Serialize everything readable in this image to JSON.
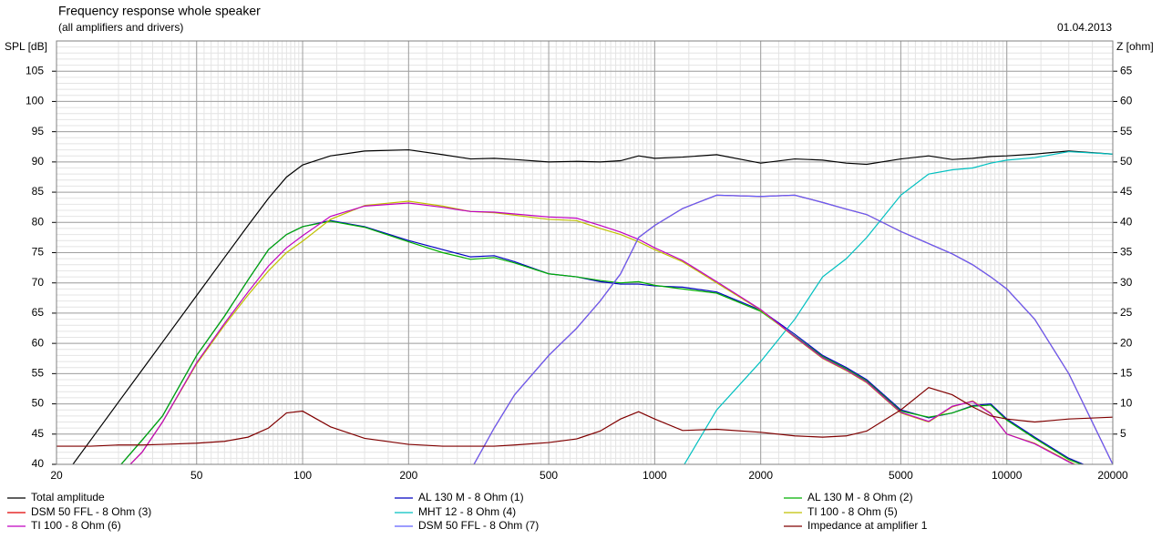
{
  "chart_data": {
    "type": "line",
    "title": "Frequency response whole speaker",
    "subtitle": "(all amplifiers and drivers)",
    "date": "01.04.2013",
    "y_label": "SPL [dB]",
    "y2_label": "Z [ohm]",
    "x_scale": "log",
    "grid": true,
    "xlim": [
      20,
      20000
    ],
    "xticks": [
      20,
      50,
      100,
      200,
      500,
      1000,
      2000,
      5000,
      10000,
      20000
    ],
    "ylim": [
      40,
      110
    ],
    "yticks": [
      40,
      45,
      50,
      55,
      60,
      65,
      70,
      75,
      80,
      85,
      90,
      95,
      100,
      105
    ],
    "y2lim": [
      0,
      70
    ],
    "y2ticks": [
      5,
      10,
      15,
      20,
      25,
      30,
      35,
      40,
      45,
      50,
      55,
      60,
      65
    ],
    "x": [
      20,
      25,
      30,
      35,
      40,
      50,
      60,
      70,
      80,
      90,
      100,
      120,
      150,
      200,
      250,
      300,
      350,
      400,
      500,
      600,
      700,
      800,
      900,
      1000,
      1200,
      1500,
      2000,
      2500,
      3000,
      3500,
      4000,
      5000,
      6000,
      7000,
      8000,
      9000,
      10000,
      12000,
      15000,
      20000
    ],
    "series": [
      {
        "name": "Total amplitude",
        "color": "#000000",
        "values": [
          36.3,
          44.0,
          50.3,
          55.6,
          60.2,
          67.9,
          74.2,
          79.5,
          84.0,
          87.5,
          89.5,
          91.0,
          91.8,
          92.0,
          91.2,
          90.5,
          90.6,
          90.4,
          90.0,
          90.1,
          90.0,
          90.2,
          91.0,
          90.6,
          90.8,
          91.2,
          89.8,
          90.5,
          90.3,
          89.8,
          89.6,
          90.5,
          91.0,
          90.4,
          90.6,
          90.9,
          91.0,
          91.3,
          91.8,
          91.3
        ]
      },
      {
        "name": "AL 130 M - 8 Ohm (1)",
        "color": "#0000c0",
        "values": [
          35,
          37,
          39.5,
          44,
          48,
          58,
          64.5,
          70.5,
          75.5,
          78,
          79.3,
          80.3,
          79.3,
          77,
          75.5,
          74.3,
          74.5,
          73.5,
          71.5,
          71,
          70.2,
          69.8,
          69.8,
          69.5,
          69.3,
          68.5,
          65.5,
          61.5,
          58,
          56,
          54,
          49,
          47.7,
          48.5,
          49.7,
          50,
          47.5,
          44.5,
          41,
          38
        ]
      },
      {
        "name": "AL 130 M - 8 Ohm (2)",
        "color": "#00b000",
        "values": [
          35,
          37,
          39.5,
          44,
          48,
          58,
          64.5,
          70.5,
          75.5,
          78,
          79.3,
          80.2,
          79.2,
          76.8,
          75.0,
          73.9,
          74.2,
          73.3,
          71.5,
          71,
          70.4,
          70.0,
          70.2,
          69.6,
          69.0,
          68.3,
          65.3,
          61.2,
          57.8,
          55.8,
          53.8,
          48.8,
          47.8,
          48.5,
          49.6,
          49.8,
          47.3,
          44.3,
          40.8,
          38
        ]
      },
      {
        "name": "DSM 50 FFL - 8 Ohm (3)",
        "color": "#e00000",
        "values": [
          38,
          38,
          38,
          38,
          38,
          38,
          38,
          38,
          38,
          38,
          38,
          38,
          38,
          38,
          38,
          39,
          46,
          51.5,
          58,
          62.5,
          67,
          71.5,
          77.5,
          79.5,
          82.3,
          84.5,
          84.3,
          84.5,
          83.3,
          82.2,
          81.3,
          78.5,
          76.5,
          74.8,
          73,
          71,
          69,
          64,
          55,
          40
        ]
      },
      {
        "name": "MHT 12 - 8 Ohm (4)",
        "color": "#00c0c0",
        "values": [
          38,
          38,
          38,
          38,
          38,
          38,
          38,
          38,
          38,
          38,
          38,
          38,
          38,
          38,
          38,
          38,
          38,
          38,
          38,
          38,
          38,
          38,
          38,
          38,
          39.5,
          49,
          57,
          64,
          71,
          74,
          77.5,
          84.5,
          88,
          88.7,
          89,
          89.8,
          90.3,
          90.7,
          91.7,
          91.3
        ]
      },
      {
        "name": "TI 100 - 8 Ohm (5)",
        "color": "#c0c000",
        "values": [
          35,
          36,
          38,
          42,
          47,
          56.6,
          63,
          68,
          72,
          75,
          76.9,
          80.5,
          82.8,
          83.5,
          82.7,
          81.8,
          81.6,
          81.2,
          80.5,
          80.3,
          79,
          78,
          76.8,
          75.5,
          73.5,
          70,
          65.5,
          61,
          57.5,
          55.5,
          53.5,
          48.5,
          47,
          49.5,
          50.5,
          48.5,
          45,
          43.5,
          40.5,
          37
        ]
      },
      {
        "name": "TI 100 - 8 Ohm (6)",
        "color": "#c000c0",
        "values": [
          35,
          36,
          38,
          42,
          47,
          56.8,
          63.3,
          68.5,
          72.8,
          75.8,
          77.8,
          81,
          82.7,
          83.2,
          82.5,
          81.8,
          81.7,
          81.4,
          80.9,
          80.7,
          79.5,
          78.4,
          77.2,
          75.8,
          73.7,
          70.2,
          65.6,
          61.1,
          57.6,
          55.6,
          53.6,
          48.6,
          47.1,
          49.6,
          50.4,
          48.4,
          45,
          43.4,
          40.4,
          37
        ]
      },
      {
        "name": "DSM 50 FFL - 8 Ohm (7)",
        "color": "#6060ff",
        "values": [
          38,
          38,
          38,
          38,
          38,
          38,
          38,
          38,
          38,
          38,
          38,
          38,
          38,
          38,
          38,
          39,
          46,
          51.5,
          58,
          62.5,
          67,
          71.5,
          77.5,
          79.5,
          82.3,
          84.5,
          84.3,
          84.5,
          83.3,
          82.2,
          81.3,
          78.5,
          76.5,
          74.8,
          73,
          71,
          69,
          64,
          55,
          40
        ]
      },
      {
        "name": "Impedance at amplifier 1",
        "color": "#800000",
        "axis": "y2",
        "values": [
          3,
          3,
          3.2,
          3.2,
          3.3,
          3.5,
          3.8,
          4.5,
          6,
          8.5,
          8.8,
          6.2,
          4.3,
          3.3,
          3,
          3,
          3,
          3.2,
          3.6,
          4.2,
          5.5,
          7.5,
          8.7,
          7.5,
          5.6,
          5.8,
          5.3,
          4.7,
          4.5,
          4.7,
          5.5,
          9,
          12.7,
          11.5,
          9.5,
          8,
          7.5,
          7,
          7.5,
          7.8
        ]
      }
    ]
  }
}
